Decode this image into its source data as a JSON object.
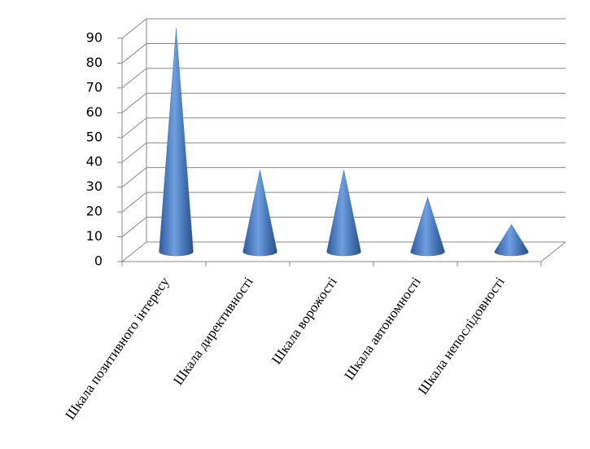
{
  "chart_data": {
    "type": "cone",
    "categories": [
      "Шкала позитивного інтересу",
      "Шкала директивності",
      "Шкала ворожості",
      "Шкала автономності",
      "Шкала непослідовності"
    ],
    "values": [
      90,
      33,
      33,
      22,
      11
    ],
    "color": "#4a78b8",
    "ylim": [
      0,
      90
    ],
    "yticks": [
      0,
      10,
      20,
      30,
      40,
      50,
      60,
      70,
      80,
      90
    ],
    "grid": true
  }
}
